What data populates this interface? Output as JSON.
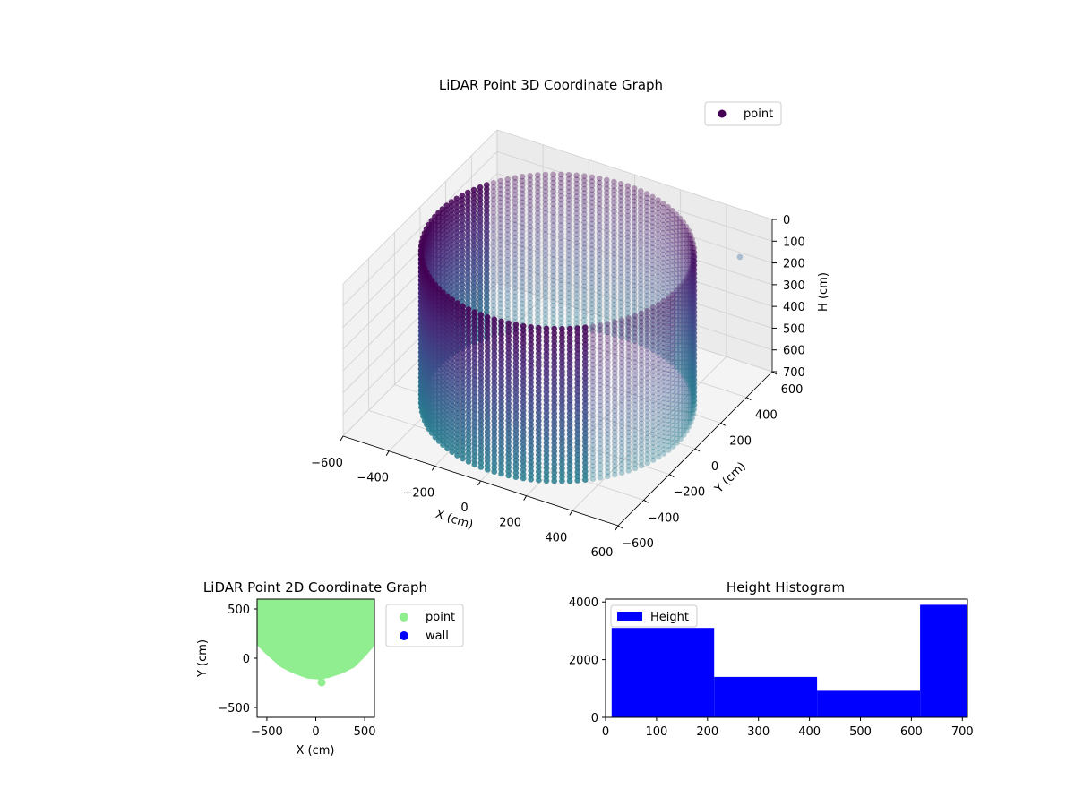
{
  "chart_data": [
    {
      "type": "scatter",
      "projection": "3d",
      "title": "LiDAR Point 3D Coordinate Graph",
      "xlabel": "X (cm)",
      "ylabel": "Y (cm)",
      "zlabel": "H (cm)",
      "xlim": [
        -600,
        600
      ],
      "ylim": [
        -600,
        600
      ],
      "zlim": [
        0,
        700
      ],
      "zaxis_inverted": true,
      "xticks": [
        -600,
        -400,
        -200,
        0,
        200,
        400,
        600
      ],
      "yticks": [
        -600,
        -400,
        -200,
        0,
        200,
        400,
        600
      ],
      "zticks": [
        0,
        100,
        200,
        300,
        400,
        500,
        600,
        700
      ],
      "xtick_labels": [
        "−600",
        "−400",
        "−200",
        "0",
        "200",
        "400",
        "600"
      ],
      "ytick_labels": [
        "−600",
        "−400",
        "−200",
        "0",
        "200",
        "400",
        "600"
      ],
      "ztick_labels": [
        "0",
        "100",
        "200",
        "300",
        "400",
        "500",
        "600",
        "700"
      ],
      "colormap": "viridis",
      "legend": {
        "entries": [
          {
            "label": "point",
            "color": "#440154"
          }
        ],
        "placement": "top-right"
      },
      "series": [
        {
          "name": "point",
          "shape": "cylindrical wall",
          "center": [
            0,
            0
          ],
          "radius": 520,
          "height_range": [
            0,
            700
          ],
          "notes_values": {
            "highlight_point": [
              560,
              420,
              80
            ]
          }
        }
      ]
    },
    {
      "type": "scatter",
      "title": "LiDAR Point 2D Coordinate Graph",
      "xlabel": "X (cm)",
      "ylabel": "Y (cm)",
      "xlim": [
        -600,
        600
      ],
      "ylim": [
        -600,
        600
      ],
      "xticks": [
        -500,
        0,
        500
      ],
      "yticks": [
        -500,
        0,
        500
      ],
      "xtick_labels": [
        "−500",
        "0",
        "500"
      ],
      "ytick_labels": [
        "−500",
        "0",
        "500"
      ],
      "legend": {
        "placement": "outside-right"
      },
      "series": [
        {
          "name": "point",
          "color": "#90ee90",
          "boundary": [
            [
              -600,
              600
            ],
            [
              -600,
              170
            ],
            [
              -500,
              70
            ],
            [
              -420,
              0
            ],
            [
              -340,
              -70
            ],
            [
              -220,
              -130
            ],
            [
              -80,
              -180
            ],
            [
              40,
              -190
            ],
            [
              140,
              -170
            ],
            [
              260,
              -130
            ],
            [
              380,
              -70
            ],
            [
              480,
              30
            ],
            [
              560,
              120
            ],
            [
              600,
              200
            ],
            [
              600,
              600
            ]
          ],
          "outlier": [
            60,
            -245
          ]
        },
        {
          "name": "wall",
          "color": "#0000ff",
          "values": []
        }
      ]
    },
    {
      "type": "bar",
      "title": "Height Histogram",
      "xlim": [
        0,
        710
      ],
      "ylim": [
        0,
        4100
      ],
      "xticks": [
        0,
        100,
        200,
        300,
        400,
        500,
        600,
        700
      ],
      "yticks": [
        0,
        2000,
        4000
      ],
      "xtick_labels": [
        "0",
        "100",
        "200",
        "300",
        "400",
        "500",
        "600",
        "700"
      ],
      "ytick_labels": [
        "0",
        "2000",
        "4000"
      ],
      "legend": {
        "placement": "top-left"
      },
      "series": [
        {
          "name": "Height",
          "color": "#0000ff",
          "bins": [
            [
              12,
              213
            ],
            [
              213,
              415
            ],
            [
              415,
              617
            ],
            [
              617,
              710
            ]
          ],
          "values": [
            3100,
            1400,
            920,
            3900
          ]
        }
      ]
    }
  ]
}
